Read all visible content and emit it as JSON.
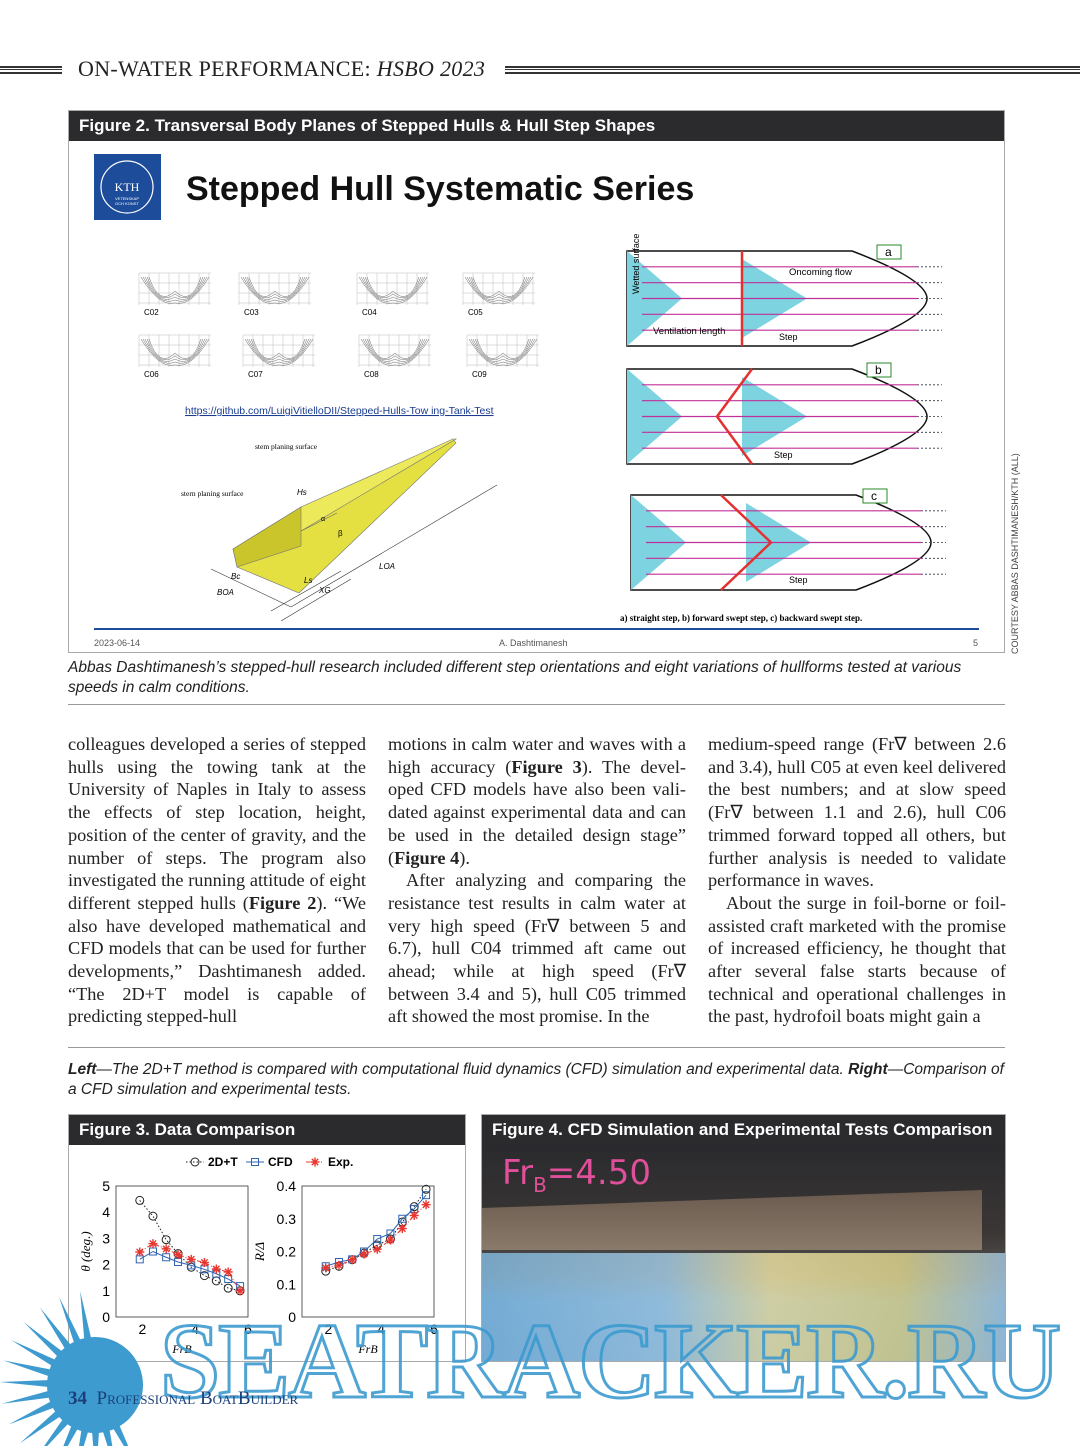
{
  "header": {
    "section": "ON-WATER PERFORMANCE:",
    "issue": "HSBO 2023"
  },
  "figure2": {
    "title": "Figure 2. Transversal Body Planes of Stepped Hulls & Hull Step Shapes",
    "slide": {
      "logo_text": "KTH",
      "logo_sub1": "VETENSKAP",
      "logo_sub2": "OCH KONST",
      "heading": "Stepped Hull Systematic Series",
      "hulls": [
        "C02",
        "C03",
        "C04",
        "C05",
        "C06",
        "C07",
        "C08",
        "C09"
      ],
      "link": "https://github.com/LuigiVitielloDII/Stepped-Hulls-Tow ing-Tank-Test",
      "boat_labels": {
        "stem": "stem planing surface",
        "stern": "stern planing surface",
        "hs": "Hs",
        "bc": "Bc",
        "boa": "BOA",
        "ls": "Ls",
        "xg": "XG",
        "loa": "LOA",
        "alpha": "α",
        "beta": "β"
      },
      "diagram_labels": {
        "a": "a",
        "b": "b",
        "c": "c",
        "wetted": "Wetted surface",
        "oncoming": "Oncoming flow",
        "ventilation": "Ventilation length",
        "step": "Step"
      },
      "diagram_caption": "a) straight step, b) forward swept step, c) backward swept step.",
      "footer_date": "2023-06-14",
      "footer_author": "A. Dashtimanesh",
      "footer_page": "5"
    },
    "credit": "COURTESY ABBAS DASHTIMANESH/KTH (ALL)",
    "caption": "Abbas Dashtimanesh’s stepped-hull research included different step orientations and eight variations of hullforms tested at various speeds in calm conditions."
  },
  "article": {
    "col1": "colleagues developed a series of stepped hulls using the towing tank at the University of Naples in Italy to assess the effects of step location, height, position of the center of gravity, and the number of steps. The program also investigated the running attitude of eight different stepped hulls (",
    "col1_bold": "Figure 2",
    "col1_end": "). “We also have developed mathe­matical and CFD models that can be used for further developments,” Dash­timanesh added. “The 2D+T model is capable of predicting stepped-hull",
    "col2_a": "motions in calm water and waves with a high accuracy (",
    "col2_bold1": "Figure 3",
    "col2_b": "). The devel­oped CFD models have also been vali­dated against experimental data and can be used in the detailed design stage” (",
    "col2_bold2": "Figure 4",
    "col2_c": ").",
    "col2_p2": "After analyzing and comparing the resistance test results in calm water at very high speed (Fr∇ between 5 and 6.7), hull C04 trimmed aft came out ahead; while at high speed (Fr∇ between 3.4 and 5), hull C05 trimmed aft showed the most promise. In the",
    "col3_p1": "medium-speed range (Fr∇ between 2.6 and 3.4), hull C05 at even keel deliv­ered the best numbers; and at slow speed (Fr∇ between 1.1 and 2.6), hull C06 trimmed forward topped all oth­ers, but further analysis is needed to validate performance in waves.",
    "col3_p2": "About the surge in foil-borne or foil-assisted craft marketed with the prom­ise of increased efficiency, he thought that after several false starts because of technical and operational challenges in the past, hydrofoil boats might gain a"
  },
  "caption2": {
    "left_label": "Left",
    "left_text": "—The 2D+T method is compared with computational fluid dynamics (CFD) simulation and experimental data. ",
    "right_label": "Right",
    "right_text": "—Compari­son of a CFD simulation and experimental tests."
  },
  "figure3": {
    "title": "Figure 3. Data Comparison"
  },
  "figure4": {
    "title": "Figure 4. CFD Simulation and Experimental Tests Comparison",
    "overlay": "Fr",
    "overlay_sub": "B",
    "overlay_val": "=4.50",
    "overlay_color": "#e0509a"
  },
  "chart_data": [
    {
      "type": "line",
      "xlabel": "FrB",
      "ylabel": "θ (deg.)",
      "xlim": [
        1,
        6
      ],
      "ylim": [
        0,
        5
      ],
      "xticks": [
        2,
        4,
        6
      ],
      "yticks": [
        0,
        1,
        2,
        3,
        4,
        5
      ],
      "x": [
        1.9,
        2.4,
        2.9,
        3.35,
        3.85,
        4.35,
        4.8,
        5.25,
        5.7
      ],
      "series": [
        {
          "name": "2D+T",
          "color": "#222222",
          "marker": "circle",
          "style": "dotted",
          "values": [
            4.45,
            3.85,
            2.95,
            2.42,
            1.9,
            1.58,
            1.38,
            1.1,
            1.0
          ]
        },
        {
          "name": "CFD",
          "color": "#2f63b0",
          "marker": "square",
          "style": "solid",
          "values": [
            2.2,
            2.5,
            2.28,
            2.1,
            1.97,
            1.82,
            1.65,
            1.45,
            1.18
          ]
        },
        {
          "name": "Exp.",
          "color": "#e8352e",
          "marker": "asterisk",
          "style": "dashdot",
          "values": [
            2.48,
            2.8,
            2.6,
            2.38,
            2.2,
            2.08,
            1.83,
            1.72,
            1.0
          ]
        }
      ]
    },
    {
      "type": "line",
      "xlabel": "FrB",
      "ylabel": "R/Δ",
      "xlim": [
        1,
        6
      ],
      "ylim": [
        0,
        0.4
      ],
      "xticks": [
        2,
        4,
        6
      ],
      "yticks": [
        0,
        0.1,
        0.2,
        0.3,
        0.4
      ],
      "x": [
        1.9,
        2.4,
        2.9,
        3.35,
        3.85,
        4.35,
        4.8,
        5.25,
        5.7
      ],
      "series": [
        {
          "name": "2D+T",
          "color": "#222222",
          "marker": "circle",
          "style": "dotted",
          "values": [
            0.14,
            0.155,
            0.175,
            0.195,
            0.22,
            0.238,
            0.29,
            0.337,
            0.39
          ]
        },
        {
          "name": "CFD",
          "color": "#2f63b0",
          "marker": "square",
          "style": "solid",
          "values": [
            0.155,
            0.168,
            0.176,
            0.2,
            0.238,
            0.255,
            0.3,
            0.33,
            0.372
          ]
        },
        {
          "name": "Exp.",
          "color": "#e8352e",
          "marker": "asterisk",
          "style": "dashdot",
          "values": [
            0.15,
            0.158,
            0.175,
            0.192,
            0.207,
            0.235,
            0.27,
            0.31,
            0.343
          ]
        }
      ]
    }
  ],
  "footer": {
    "page": "34",
    "magazine": "Professional BoatBuilder"
  },
  "watermark": "SEATRACKER.RU"
}
